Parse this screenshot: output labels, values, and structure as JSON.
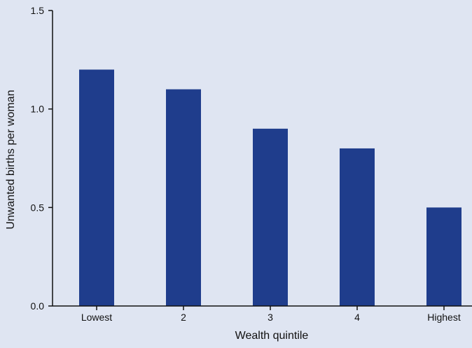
{
  "chart_data": {
    "type": "bar",
    "categories": [
      "Lowest",
      "2",
      "3",
      "4",
      "Highest"
    ],
    "values": [
      1.2,
      1.1,
      0.9,
      0.8,
      0.5
    ],
    "title": "",
    "xlabel": "Wealth quintile",
    "ylabel": "Unwanted births per woman",
    "ylim": [
      0,
      1.5
    ],
    "yticks": [
      0.0,
      0.5,
      1.0,
      1.5
    ],
    "ytick_labels": [
      "0.0",
      "0.5",
      "1.0",
      "1.5"
    ],
    "grid": false,
    "legend": "none",
    "colors": {
      "bar": "#1f3d8c",
      "background": "#dfe5f2",
      "axis": "#111111"
    }
  }
}
